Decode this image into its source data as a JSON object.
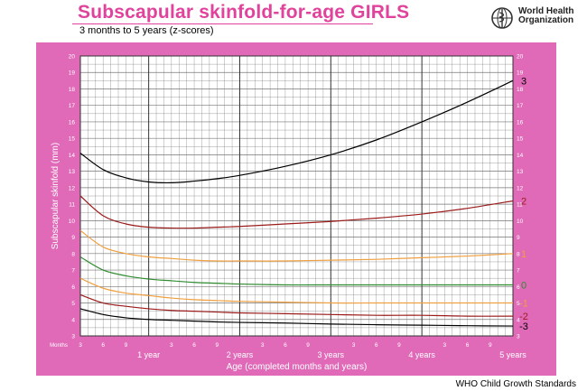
{
  "header": {
    "title": "Subscapular skinfold-for-age  GIRLS",
    "subtitle": "3 months to 5 years (z-scores)",
    "org_name_line1": "World Health",
    "org_name_line2": "Organization"
  },
  "footer": {
    "text": "WHO Child Growth Standards"
  },
  "colors": {
    "panel": "#e06ab8",
    "title": "#e0429c",
    "z3": "#000000",
    "z2": "#9b1b1b",
    "z1": "#f0a040",
    "z0": "#2e8b2e"
  },
  "chart_data": {
    "type": "line",
    "ylabel": "Subscapular skinfold (mm)",
    "xlabel": "Age (completed months and years)",
    "months_label": "Months",
    "ylim": [
      3,
      20
    ],
    "xlim": [
      3,
      60
    ],
    "grid": true,
    "y_ticks": [
      3,
      4,
      5,
      6,
      7,
      8,
      9,
      10,
      11,
      12,
      13,
      14,
      15,
      16,
      17,
      18,
      19,
      20
    ],
    "month_ticks": [
      {
        "x": 3,
        "label": "3"
      },
      {
        "x": 6,
        "label": "6"
      },
      {
        "x": 9,
        "label": "9"
      },
      {
        "x": 15,
        "label": "3"
      },
      {
        "x": 18,
        "label": "6"
      },
      {
        "x": 21,
        "label": "9"
      },
      {
        "x": 27,
        "label": "3"
      },
      {
        "x": 30,
        "label": "6"
      },
      {
        "x": 33,
        "label": "9"
      },
      {
        "x": 39,
        "label": "3"
      },
      {
        "x": 42,
        "label": "6"
      },
      {
        "x": 45,
        "label": "9"
      },
      {
        "x": 51,
        "label": "3"
      },
      {
        "x": 54,
        "label": "6"
      },
      {
        "x": 57,
        "label": "9"
      }
    ],
    "year_ticks": [
      {
        "x": 12,
        "label": "1 year"
      },
      {
        "x": 24,
        "label": "2 years"
      },
      {
        "x": 36,
        "label": "3 years"
      },
      {
        "x": 48,
        "label": "4 years"
      },
      {
        "x": 60,
        "label": "5 years"
      }
    ],
    "x": [
      3,
      6,
      9,
      12,
      15,
      18,
      21,
      24,
      30,
      36,
      42,
      48,
      54,
      60
    ],
    "series": [
      {
        "name": "3",
        "color": "#000000",
        "values": [
          14.1,
          13.1,
          12.6,
          12.35,
          12.3,
          12.4,
          12.55,
          12.75,
          13.3,
          14.0,
          14.9,
          16.0,
          17.2,
          18.5
        ]
      },
      {
        "name": "2",
        "color": "#9b1b1b",
        "values": [
          11.5,
          10.3,
          9.8,
          9.6,
          9.55,
          9.55,
          9.6,
          9.65,
          9.8,
          9.95,
          10.15,
          10.4,
          10.75,
          11.2
        ]
      },
      {
        "name": "1",
        "color": "#f0a040",
        "values": [
          9.4,
          8.4,
          8.0,
          7.8,
          7.7,
          7.6,
          7.55,
          7.55,
          7.55,
          7.6,
          7.65,
          7.75,
          7.85,
          8.0
        ]
      },
      {
        "name": "0",
        "color": "#2e8b2e",
        "values": [
          7.8,
          7.0,
          6.65,
          6.45,
          6.35,
          6.25,
          6.2,
          6.15,
          6.1,
          6.1,
          6.1,
          6.1,
          6.1,
          6.1
        ]
      },
      {
        "name": "-1",
        "color": "#f0a040",
        "values": [
          6.5,
          5.9,
          5.6,
          5.45,
          5.3,
          5.2,
          5.15,
          5.1,
          5.05,
          5.0,
          5.0,
          5.0,
          5.0,
          5.0
        ]
      },
      {
        "name": "-2",
        "color": "#9b1b1b",
        "values": [
          5.5,
          5.0,
          4.8,
          4.65,
          4.55,
          4.5,
          4.45,
          4.4,
          4.35,
          4.3,
          4.25,
          4.25,
          4.2,
          4.2
        ]
      },
      {
        "name": "-3",
        "color": "#000000",
        "values": [
          4.65,
          4.3,
          4.1,
          4.0,
          3.95,
          3.9,
          3.85,
          3.82,
          3.78,
          3.72,
          3.68,
          3.65,
          3.62,
          3.6
        ]
      }
    ]
  }
}
